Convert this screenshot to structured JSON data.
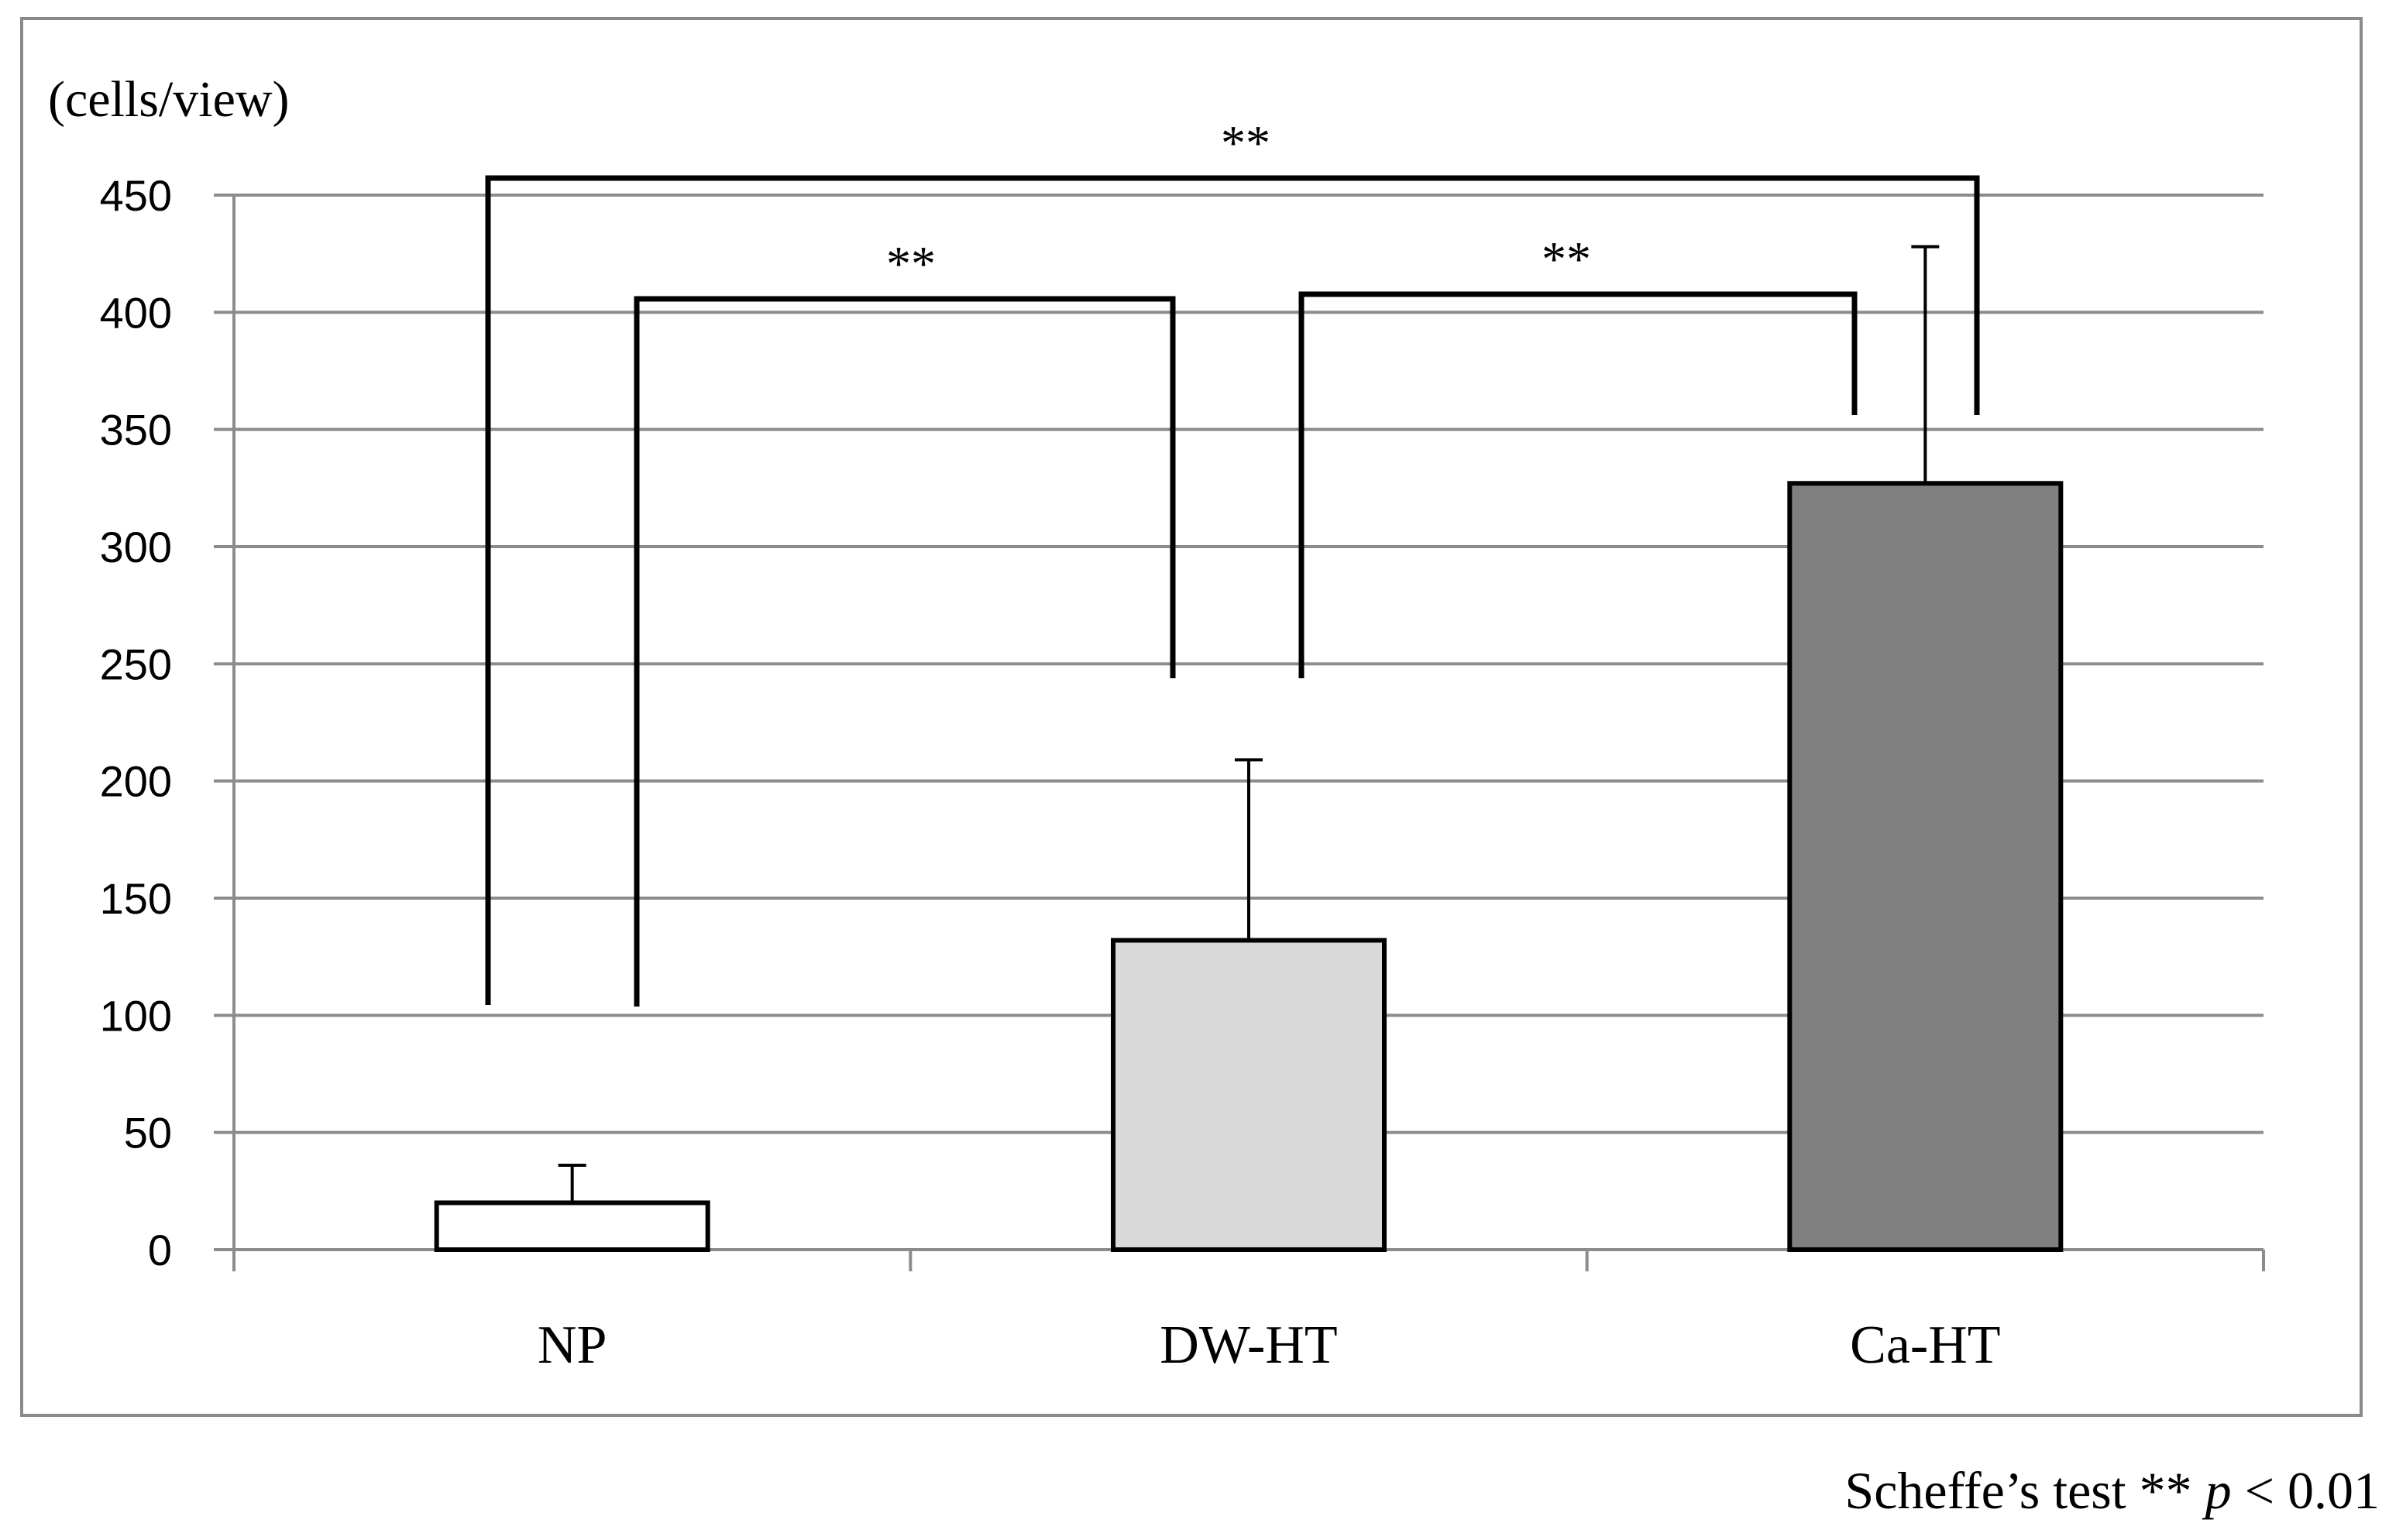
{
  "chart_data": {
    "type": "bar",
    "ylabel": "(cells/view)",
    "xlabel": "",
    "title": "",
    "categories": [
      "NP",
      "DW-HT",
      "Ca-HT"
    ],
    "values": [
      20,
      132,
      327
    ],
    "error_bars": [
      16,
      77,
      101
    ],
    "bar_colors": [
      "#ffffff",
      "#d9d9d9",
      "#808080"
    ],
    "ylim": [
      0,
      450
    ],
    "yticks": [
      0,
      50,
      100,
      150,
      200,
      250,
      300,
      350,
      400,
      450
    ],
    "grid": true,
    "significance": [
      {
        "from": "NP",
        "to": "Ca-HT",
        "label": "**"
      },
      {
        "from": "NP",
        "to": "DW-HT",
        "label": "**"
      },
      {
        "from": "DW-HT",
        "to": "Ca-HT",
        "label": "**"
      }
    ]
  },
  "footnote": {
    "prefix": "Scheffe’s test ** ",
    "p_symbol": "p",
    "suffix": " < 0.01"
  },
  "colors": {
    "grid": "#8c8c8c",
    "axis": "#8c8c8c",
    "bar_stroke": "#000000",
    "bracket": "#000000"
  }
}
